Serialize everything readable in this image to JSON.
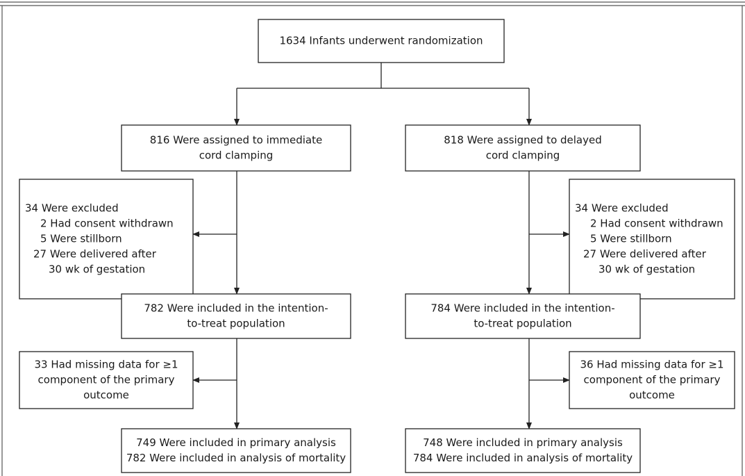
{
  "nodes": [
    {
      "lines": [
        "1634 Infants underwent randomization"
      ]
    },
    {
      "lines": [
        "816 Were assigned to immediate",
        "cord clamping"
      ]
    },
    {
      "lines": [
        "818 Were assigned to delayed",
        "cord clamping"
      ]
    },
    {
      "lines": [
        "34 Were excluded",
        "2 Had consent withdrawn",
        "5 Were stillborn",
        "27 Were delivered after",
        "30 wk of gestation"
      ]
    },
    {
      "lines": [
        "34 Were excluded",
        "2 Had consent withdrawn",
        "5 Were stillborn",
        "27 Were delivered after",
        "30 wk of gestation"
      ]
    },
    {
      "lines": [
        "782 Were included in the intention-",
        "to-treat population"
      ]
    },
    {
      "lines": [
        "784 Were included in the intention-",
        "to-treat population"
      ]
    },
    {
      "lines": [
        "33 Had missing data for ≥1",
        "component of the primary",
        "outcome"
      ]
    },
    {
      "lines": [
        "36 Had missing data for ≥1",
        "component of the primary",
        "outcome"
      ]
    },
    {
      "lines": [
        "749 Were included in primary analysis",
        "782 Were included in analysis of mortality"
      ]
    },
    {
      "lines": [
        "748 Were included in primary analysis",
        "784 Were included in analysis of mortality"
      ]
    }
  ]
}
